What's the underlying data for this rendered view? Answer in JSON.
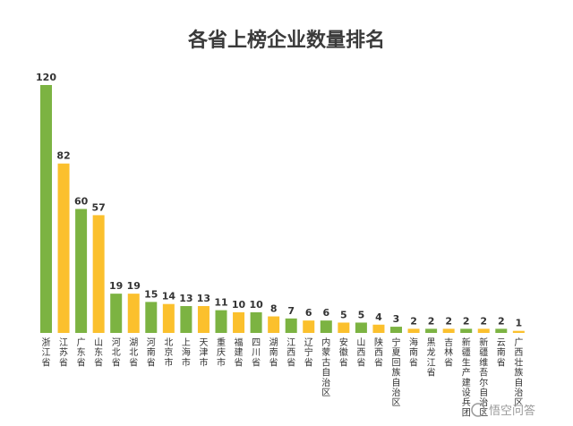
{
  "chart_data": {
    "type": "bar",
    "title": "各省上榜企业数量排名",
    "xlabel": "",
    "ylabel": "",
    "ylim": [
      0,
      120
    ],
    "grid": false,
    "legend": "none",
    "categories": [
      "浙江省",
      "江苏省",
      "广东省",
      "山东省",
      "河北省",
      "湖北省",
      "河南省",
      "北京市",
      "上海市",
      "天津市",
      "重庆市",
      "福建省",
      "四川省",
      "湖南省",
      "江西省",
      "辽宁省",
      "内蒙古自治区",
      "安徽省",
      "山西省",
      "陕西省",
      "宁夏回族自治区",
      "海南省",
      "黑龙江省",
      "吉林省",
      "新疆生产建设兵团",
      "新疆维吾尔自治区",
      "云南省",
      "广西壮族自治区"
    ],
    "values": [
      120,
      82,
      60,
      57,
      19,
      19,
      15,
      14,
      13,
      13,
      11,
      10,
      10,
      8,
      7,
      6,
      6,
      5,
      5,
      4,
      3,
      2,
      2,
      2,
      2,
      2,
      2,
      1
    ],
    "colors": {
      "green": "#7cb342",
      "yellow": "#fbc02d"
    },
    "bar_colors": [
      "green",
      "yellow",
      "green",
      "yellow",
      "green",
      "yellow",
      "green",
      "yellow",
      "green",
      "yellow",
      "green",
      "yellow",
      "green",
      "yellow",
      "green",
      "yellow",
      "green",
      "yellow",
      "green",
      "yellow",
      "green",
      "yellow",
      "green",
      "yellow",
      "green",
      "yellow",
      "green",
      "yellow"
    ]
  },
  "watermark": "悟空问答"
}
